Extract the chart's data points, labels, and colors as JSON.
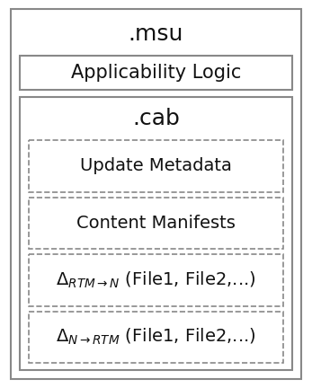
{
  "bg_color": "#ffffff",
  "msu_label": ".msu",
  "applicability_label": "Applicability Logic",
  "cab_label": ".cab",
  "dashed_box_labels_plain": [
    "Update Metadata",
    "Content Manifests"
  ],
  "outer_box_color": "#888888",
  "inner_solid_box_color": "#888888",
  "dashed_box_color": "#888888",
  "text_color_dark": "#111111",
  "msu_fontsize": 18,
  "applicability_fontsize": 15,
  "cab_fontsize": 18,
  "dashed_fontsize": 14,
  "delta_fontsize": 14,
  "fig_w": 3.47,
  "fig_h": 4.32,
  "dpi": 100
}
